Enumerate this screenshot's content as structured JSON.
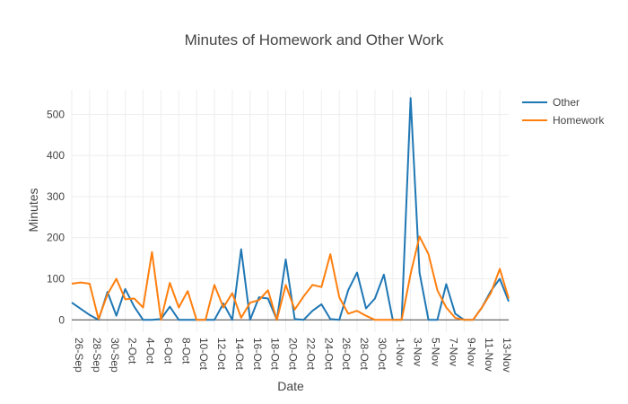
{
  "chart_data": {
    "type": "line",
    "title": "Minutes of Homework and Other Work",
    "xlabel": "Date",
    "ylabel": "Minutes",
    "ylim": [
      -30,
      560
    ],
    "yticks": [
      0,
      100,
      200,
      300,
      400,
      500
    ],
    "grid": true,
    "legend_position": "top-right",
    "x_tick_labels": [
      "26-Sep",
      "28-Sep",
      "30-Sep",
      "2-Oct",
      "4-Oct",
      "6-Oct",
      "8-Oct",
      "10-Oct",
      "12-Oct",
      "14-Oct",
      "16-Oct",
      "18-Oct",
      "20-Oct",
      "22-Oct",
      "24-Oct",
      "26-Oct",
      "28-Oct",
      "30-Oct",
      "1-Nov",
      "3-Nov",
      "5-Nov",
      "7-Nov",
      "9-Nov",
      "11-Nov",
      "13-Nov"
    ],
    "x": [
      "26-Sep",
      "27-Sep",
      "28-Sep",
      "29-Sep",
      "30-Sep",
      "1-Oct",
      "2-Oct",
      "3-Oct",
      "4-Oct",
      "5-Oct",
      "6-Oct",
      "7-Oct",
      "8-Oct",
      "9-Oct",
      "10-Oct",
      "11-Oct",
      "12-Oct",
      "13-Oct",
      "14-Oct",
      "15-Oct",
      "16-Oct",
      "17-Oct",
      "18-Oct",
      "19-Oct",
      "20-Oct",
      "21-Oct",
      "22-Oct",
      "23-Oct",
      "24-Oct",
      "25-Oct",
      "26-Oct",
      "27-Oct",
      "28-Oct",
      "29-Oct",
      "30-Oct",
      "31-Oct",
      "1-Nov",
      "2-Nov",
      "3-Nov",
      "4-Nov",
      "5-Nov",
      "6-Nov",
      "7-Nov",
      "8-Nov",
      "9-Nov",
      "10-Nov",
      "11-Nov",
      "12-Nov",
      "13-Nov",
      "14-Nov"
    ],
    "series": [
      {
        "name": "Other",
        "color": "#1f77b4",
        "values": [
          42,
          27,
          12,
          0,
          68,
          10,
          75,
          32,
          0,
          0,
          2,
          32,
          0,
          0,
          0,
          0,
          0,
          40,
          0,
          172,
          0,
          55,
          52,
          0,
          147,
          2,
          0,
          22,
          38,
          2,
          0,
          72,
          115,
          28,
          52,
          110,
          0,
          0,
          540,
          115,
          0,
          0,
          87,
          15,
          0,
          0,
          30,
          70,
          100,
          45
        ]
      },
      {
        "name": "Homework",
        "color": "#ff7f0e",
        "values": [
          88,
          91,
          88,
          2,
          62,
          100,
          50,
          52,
          30,
          165,
          0,
          90,
          30,
          70,
          0,
          0,
          85,
          30,
          65,
          5,
          42,
          48,
          72,
          0,
          85,
          25,
          57,
          85,
          80,
          160,
          55,
          15,
          22,
          10,
          0,
          0,
          0,
          0,
          112,
          203,
          160,
          72,
          30,
          5,
          0,
          0,
          30,
          65,
          124,
          52
        ]
      }
    ]
  }
}
